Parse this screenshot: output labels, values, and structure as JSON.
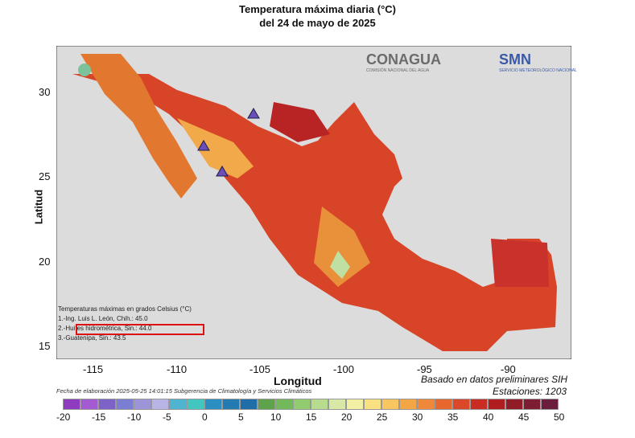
{
  "title": "Temperatura máxima diaria (°C)",
  "subtitle": "del 24 de mayo de 2025",
  "axes": {
    "ylabel": "Latitud",
    "xlabel": "Longitud",
    "xticks": [
      "-115",
      "-110",
      "-105",
      "-100",
      "-95",
      "-90"
    ],
    "yticks": [
      "30",
      "25",
      "20",
      "15"
    ]
  },
  "legend": {
    "heading": "Temperaturas máximas en grados Celsius (°C)",
    "items": [
      "1.-Ing. Luis L. León, Chih.: 45.0",
      "2.-Huites hidrométrica, Sin.: 44.0",
      "3.-Guatenipa, Sin.: 43.5"
    ]
  },
  "notes": {
    "basis": "Basado en datos preliminares SIH",
    "stations": "Estaciones:  1203",
    "elaboration": "Fecha de elaboración 2025-05-25 14:01:15 Subgerencia de Climatología y Servicios Climáticos"
  },
  "logos": {
    "conagua": "CONAGUA",
    "conagua_sub": "COMISIÓN NACIONAL DEL AGUA",
    "smn": "SMN",
    "smn_sub": "SERVICIO METEOROLÓGICO NACIONAL"
  },
  "colorbar": {
    "labels": [
      "-20",
      "-15",
      "-10",
      "-5",
      "0",
      "5",
      "10",
      "15",
      "20",
      "25",
      "30",
      "35",
      "40",
      "45",
      "50"
    ],
    "colors": [
      "#8e3bbf",
      "#a45ad0",
      "#7d63c7",
      "#7b7fd3",
      "#9c96d8",
      "#b8b4e5",
      "#4fb4cf",
      "#42c7c0",
      "#2c8fc2",
      "#247bb1",
      "#1f6ea7",
      "#5fa24c",
      "#73b85a",
      "#92cc71",
      "#b8dc8d",
      "#d8e8a6",
      "#f3f0a6",
      "#f9e081",
      "#f9c561",
      "#f4a646",
      "#ef883a",
      "#e7672f",
      "#db4829",
      "#c82c22",
      "#af1d21",
      "#921b28",
      "#7c1d33",
      "#6b1d3d"
    ]
  }
}
